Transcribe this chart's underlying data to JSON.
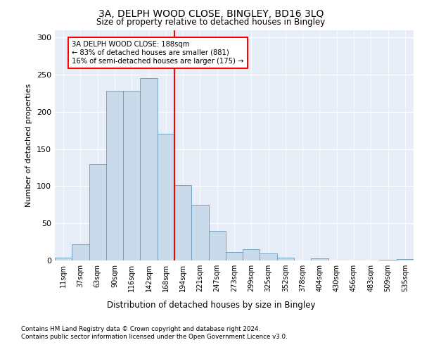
{
  "title1": "3A, DELPH WOOD CLOSE, BINGLEY, BD16 3LQ",
  "title2": "Size of property relative to detached houses in Bingley",
  "xlabel": "Distribution of detached houses by size in Bingley",
  "ylabel": "Number of detached properties",
  "bar_labels": [
    "11sqm",
    "37sqm",
    "63sqm",
    "90sqm",
    "116sqm",
    "142sqm",
    "168sqm",
    "194sqm",
    "221sqm",
    "247sqm",
    "273sqm",
    "299sqm",
    "325sqm",
    "352sqm",
    "378sqm",
    "404sqm",
    "430sqm",
    "456sqm",
    "483sqm",
    "509sqm",
    "535sqm"
  ],
  "bar_heights": [
    4,
    22,
    130,
    228,
    228,
    245,
    170,
    101,
    75,
    40,
    11,
    15,
    9,
    4,
    0,
    3,
    0,
    0,
    0,
    1,
    2
  ],
  "bar_color": "#c9daea",
  "bar_edge_color": "#6699bb",
  "red_line_index": 7,
  "annotation_text": "3A DELPH WOOD CLOSE: 188sqm\n← 83% of detached houses are smaller (881)\n16% of semi-detached houses are larger (175) →",
  "ylim": [
    0,
    310
  ],
  "yticks": [
    0,
    50,
    100,
    150,
    200,
    250,
    300
  ],
  "plot_background": "#e8eef8",
  "footer1": "Contains HM Land Registry data © Crown copyright and database right 2024.",
  "footer2": "Contains public sector information licensed under the Open Government Licence v3.0."
}
